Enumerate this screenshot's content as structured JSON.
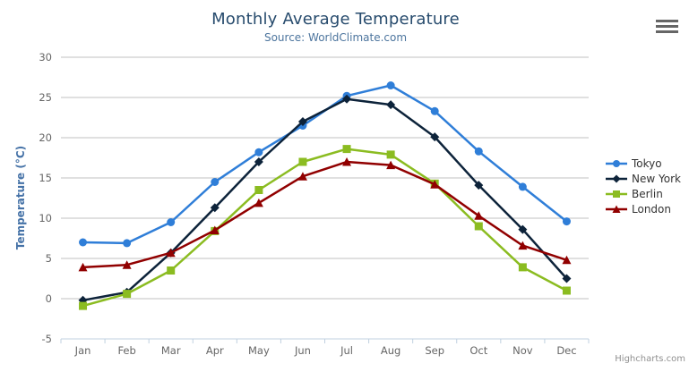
{
  "chart_data": {
    "type": "line",
    "title": "Monthly Average Temperature",
    "subtitle": "Source: WorldClimate.com",
    "xlabel": "",
    "ylabel": "Temperature (°C)",
    "ylim": [
      -5,
      30
    ],
    "ytick_interval": 5,
    "grid": true,
    "legend_position": "right",
    "categories": [
      "Jan",
      "Feb",
      "Mar",
      "Apr",
      "May",
      "Jun",
      "Jul",
      "Aug",
      "Sep",
      "Oct",
      "Nov",
      "Dec"
    ],
    "series": [
      {
        "name": "Tokyo",
        "color": "#2f7ed8",
        "marker": "circle",
        "values": [
          7.0,
          6.9,
          9.5,
          14.5,
          18.2,
          21.5,
          25.2,
          26.5,
          23.3,
          18.3,
          13.9,
          9.6
        ]
      },
      {
        "name": "New York",
        "color": "#0d233a",
        "marker": "diamond",
        "values": [
          -0.2,
          0.8,
          5.7,
          11.3,
          17.0,
          22.0,
          24.8,
          24.1,
          20.1,
          14.1,
          8.6,
          2.5
        ]
      },
      {
        "name": "Berlin",
        "color": "#8bbc21",
        "marker": "square",
        "values": [
          -0.9,
          0.6,
          3.5,
          8.4,
          13.5,
          17.0,
          18.6,
          17.9,
          14.3,
          9.0,
          3.9,
          1.0
        ]
      },
      {
        "name": "London",
        "color": "#910000",
        "marker": "triangle",
        "values": [
          3.9,
          4.2,
          5.7,
          8.5,
          11.9,
          15.2,
          17.0,
          16.6,
          14.2,
          10.3,
          6.6,
          4.8
        ]
      }
    ]
  },
  "credits": "Highcharts.com",
  "menu_icon": "hamburger-icon",
  "colors": {
    "title": "#274b6d",
    "subtitle": "#4d759e",
    "axis_title": "#4572a7",
    "tick_label": "#666666",
    "gridline": "#c0c0c0",
    "axis_line": "#c0d0e0",
    "legend_text": "#333333",
    "credits_text": "#909090",
    "menu_icon": "#666666"
  }
}
